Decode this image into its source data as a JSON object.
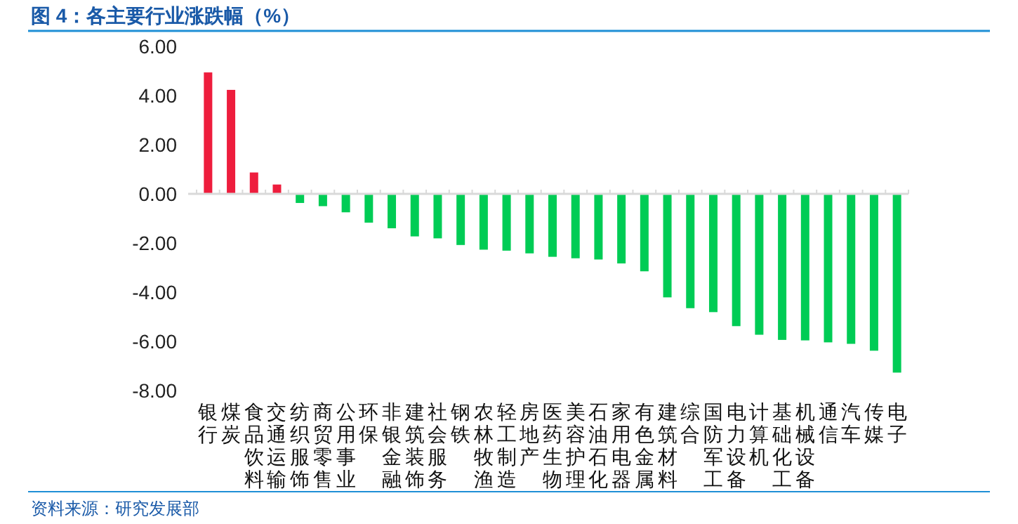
{
  "chart_data": {
    "type": "bar",
    "title": "图 4：各主要行业涨跌幅（%）",
    "categories": [
      "银行",
      "煤炭",
      "食品饮料",
      "交通运输",
      "纺织服饰",
      "商贸零售",
      "公用事业",
      "环保",
      "非银金融",
      "建筑装饰",
      "社会服务",
      "钢铁",
      "农林牧渔",
      "轻工制造",
      "房地产",
      "医药生物",
      "美容护理",
      "石油石化",
      "家用电器",
      "有色金属",
      "建筑材料",
      "综合",
      "国防军工",
      "电力设备",
      "计算机",
      "基础化工",
      "机械设备",
      "通信",
      "汽车",
      "传媒",
      "电子"
    ],
    "values": [
      4.94,
      4.23,
      0.87,
      0.38,
      -0.37,
      -0.5,
      -0.75,
      -1.17,
      -1.4,
      -1.73,
      -1.81,
      -2.08,
      -2.27,
      -2.31,
      -2.42,
      -2.56,
      -2.62,
      -2.67,
      -2.83,
      -3.15,
      -4.21,
      -4.65,
      -4.81,
      -5.38,
      -5.73,
      -5.94,
      -5.96,
      -6.04,
      -6.1,
      -6.38,
      -7.27
    ],
    "colors": [
      "#ee1d3d",
      "#ee1d3d",
      "#ee1d3d",
      "#ee1d3d",
      "#00cc55",
      "#00cc55",
      "#00cc55",
      "#00cc55",
      "#00cc55",
      "#00cc55",
      "#00cc55",
      "#00cc55",
      "#00cc55",
      "#00cc55",
      "#00cc55",
      "#00cc55",
      "#00cc55",
      "#00cc55",
      "#00cc55",
      "#00cc55",
      "#00cc55",
      "#00cc55",
      "#00cc55",
      "#00cc55",
      "#00cc55",
      "#00cc55",
      "#00cc55",
      "#00cc55",
      "#00cc55",
      "#00cc55",
      "#00cc55"
    ],
    "ylim": [
      -8,
      6
    ],
    "yticks": [
      {
        "value": 6,
        "label": "6.00"
      },
      {
        "value": 4,
        "label": "4.00"
      },
      {
        "value": 2,
        "label": "2.00"
      },
      {
        "value": 0,
        "label": "0.00"
      },
      {
        "value": -2,
        "label": "-2.00"
      },
      {
        "value": -4,
        "label": "-4.00"
      },
      {
        "value": -6,
        "label": "-6.00"
      },
      {
        "value": -8,
        "label": "-8.00"
      }
    ],
    "annotations": [
      "资料来源：研究发展部"
    ]
  }
}
